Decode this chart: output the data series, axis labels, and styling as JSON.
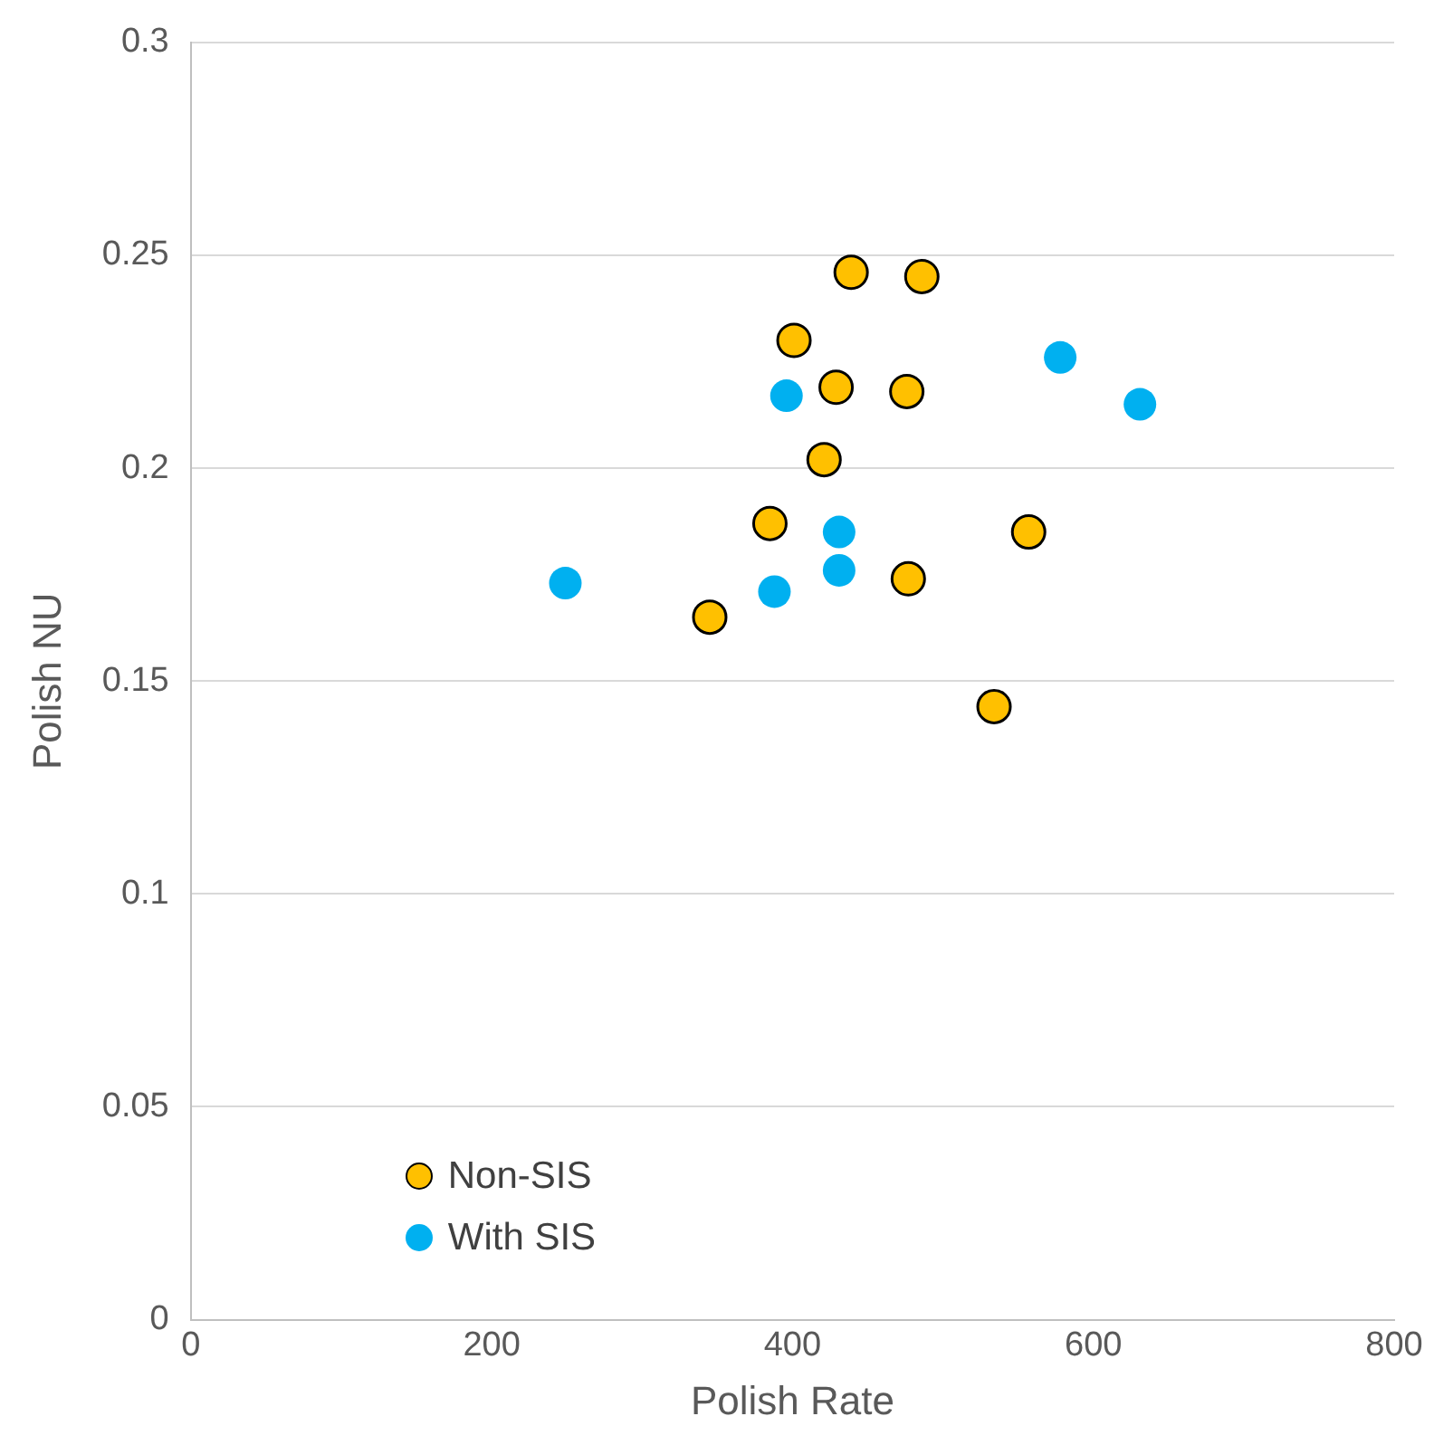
{
  "chart_data": {
    "type": "scatter",
    "xlabel": "Polish Rate",
    "ylabel": "Polish NU",
    "xlim": [
      0,
      800
    ],
    "xticks": [
      0,
      200,
      400,
      600,
      800
    ],
    "ylim": [
      0,
      0.3
    ],
    "yticks": [
      0,
      0.05,
      0.1,
      0.15,
      0.2,
      0.25,
      0.3
    ],
    "grid": "y",
    "legend": "bottom left",
    "marker": "circle",
    "series": [
      {
        "name": "Non-SIS",
        "color": "#ffc000",
        "x": [
          439,
          486,
          401,
          429,
          476,
          421,
          385,
          557,
          477,
          345,
          534
        ],
        "values": [
          0.246,
          0.245,
          0.23,
          0.219,
          0.218,
          0.202,
          0.187,
          0.185,
          0.174,
          0.165,
          0.144
        ]
      },
      {
        "name": "With SIS",
        "color": "#00b0f0",
        "x": [
          249,
          388,
          396,
          431,
          431,
          578,
          631
        ],
        "values": [
          0.173,
          0.171,
          0.217,
          0.185,
          0.176,
          0.226,
          0.215
        ]
      }
    ]
  }
}
